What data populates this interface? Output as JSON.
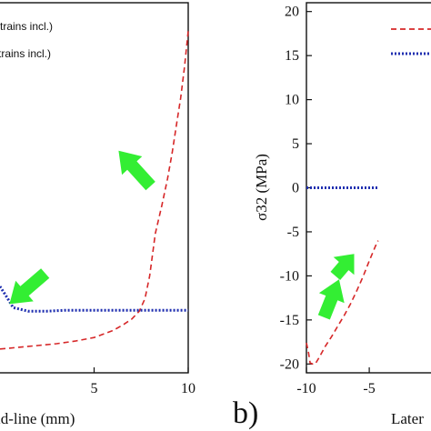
{
  "colors": {
    "dashed_series": "#d62728",
    "dotted_series": "#1f2fb0",
    "arrow": "#33ee33",
    "axis": "#111111"
  },
  "chart_data": [
    {
      "panel_label": "",
      "type": "line",
      "xlabel": "id-line (mm)",
      "ylabel": "",
      "xlim": [
        0,
        10
      ],
      "ylim": [
        -21,
        21
      ],
      "xticks": [
        {
          "value": 5,
          "label": "5"
        },
        {
          "value": 10,
          "label": "10"
        }
      ],
      "legend": {
        "placement": "top-left",
        "entries": [
          {
            "style": "dashed",
            "color": "#d62728",
            "label": "trains incl.)"
          },
          {
            "style": "dotted",
            "color": "#1f2fb0",
            "label": "trains incl.)"
          }
        ]
      },
      "series": [
        {
          "style": "dashed",
          "color": "#d62728",
          "x": [
            0,
            0.5,
            1.0,
            2.0,
            3.0,
            4.0,
            5.0,
            6.0,
            6.5,
            7.0,
            7.4,
            7.7,
            7.95,
            8.25,
            8.6,
            8.9,
            9.15,
            9.4,
            9.6,
            9.8,
            10.0
          ],
          "y": [
            -18.3,
            -18.2,
            -18.1,
            -17.9,
            -17.7,
            -17.4,
            -17.0,
            -16.2,
            -15.6,
            -14.9,
            -14.0,
            -12.6,
            -10.0,
            -5.2,
            -2.0,
            1.0,
            4.0,
            7.5,
            10.2,
            13.7,
            17.8
          ]
        },
        {
          "style": "dotted",
          "color": "#1f2fb0",
          "x": [
            0,
            0.3,
            0.7,
            1.5,
            2.5,
            3.5,
            5.0,
            7.0,
            10.0
          ],
          "y": [
            -11.2,
            -12.2,
            -13.6,
            -14.0,
            -14.0,
            -13.9,
            -13.9,
            -13.9,
            -13.9
          ]
        }
      ],
      "arrows": [
        {
          "from": [
            2.4,
            -9.7
          ],
          "to": [
            0.5,
            -13.2
          ]
        },
        {
          "from": [
            8.0,
            0.2
          ],
          "to": [
            6.3,
            4.2
          ]
        }
      ]
    },
    {
      "panel_label": "b)",
      "type": "line",
      "xlabel": "Later",
      "ylabel": "σ32  (MPa)",
      "xlim": [
        -10,
        1
      ],
      "ylim": [
        -21,
        21
      ],
      "xticks": [
        {
          "value": -10,
          "label": "-10"
        },
        {
          "value": -5,
          "label": "-5"
        }
      ],
      "yticks": [
        {
          "value": 20,
          "label": "20"
        },
        {
          "value": 15,
          "label": "15"
        },
        {
          "value": 10,
          "label": "10"
        },
        {
          "value": 5,
          "label": "5"
        },
        {
          "value": 0,
          "label": "0"
        },
        {
          "value": -5,
          "label": "-5"
        },
        {
          "value": -10,
          "label": "-10"
        },
        {
          "value": -15,
          "label": "-15"
        },
        {
          "value": -20,
          "label": "-20"
        }
      ],
      "legend": {
        "placement": "top-right",
        "entries": [
          {
            "style": "dashed",
            "color": "#d62728",
            "label": ""
          },
          {
            "style": "dotted",
            "color": "#1f2fb0",
            "label": ""
          }
        ]
      },
      "series": [
        {
          "style": "dashed",
          "color": "#d62728",
          "x": [
            -10,
            -9.85,
            -9.7,
            -9.5,
            -9.3,
            -9.0,
            -8.5,
            -8.0,
            -7.5,
            -7.0,
            -6.5,
            -6.0,
            -5.5,
            -5.0,
            -4.5,
            -4.3
          ],
          "y": [
            -17.6,
            -18.6,
            -19.9,
            -20.0,
            -20.0,
            -19.3,
            -18.0,
            -16.9,
            -15.7,
            -14.5,
            -13.2,
            -11.7,
            -10.1,
            -8.3,
            -6.6,
            -6.0
          ]
        },
        {
          "style": "dotted",
          "color": "#1f2fb0",
          "x": [
            -10,
            -4.3
          ],
          "y": [
            0,
            0
          ]
        }
      ],
      "arrows": [
        {
          "from": [
            -7.7,
            -10.0
          ],
          "to": [
            -6.2,
            -7.5
          ]
        },
        {
          "from": [
            -8.6,
            -14.7
          ],
          "to": [
            -7.4,
            -10.4
          ]
        }
      ]
    }
  ]
}
